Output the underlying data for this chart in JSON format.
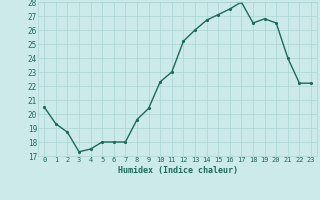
{
  "x": [
    0,
    1,
    2,
    3,
    4,
    5,
    6,
    7,
    8,
    9,
    10,
    11,
    12,
    13,
    14,
    15,
    16,
    17,
    18,
    19,
    20,
    21,
    22,
    23
  ],
  "y": [
    20.5,
    19.3,
    18.7,
    17.3,
    17.5,
    18.0,
    18.0,
    18.0,
    19.6,
    20.4,
    22.3,
    23.0,
    25.2,
    26.0,
    26.7,
    27.1,
    27.5,
    28.0,
    26.5,
    26.8,
    26.5,
    24.0,
    22.2,
    22.2
  ],
  "line_color": "#1a6b5a",
  "bg_color": "#cceaea",
  "grid_color": "#aad4d4",
  "xlabel": "Humidex (Indice chaleur)",
  "ylim": [
    17,
    28
  ],
  "yticks": [
    17,
    18,
    19,
    20,
    21,
    22,
    23,
    24,
    25,
    26,
    27,
    28
  ],
  "xticks": [
    0,
    1,
    2,
    3,
    4,
    5,
    6,
    7,
    8,
    9,
    10,
    11,
    12,
    13,
    14,
    15,
    16,
    17,
    18,
    19,
    20,
    21,
    22,
    23
  ],
  "marker_size": 2.5,
  "line_width": 1.0,
  "figsize": [
    3.2,
    2.0
  ],
  "dpi": 100
}
